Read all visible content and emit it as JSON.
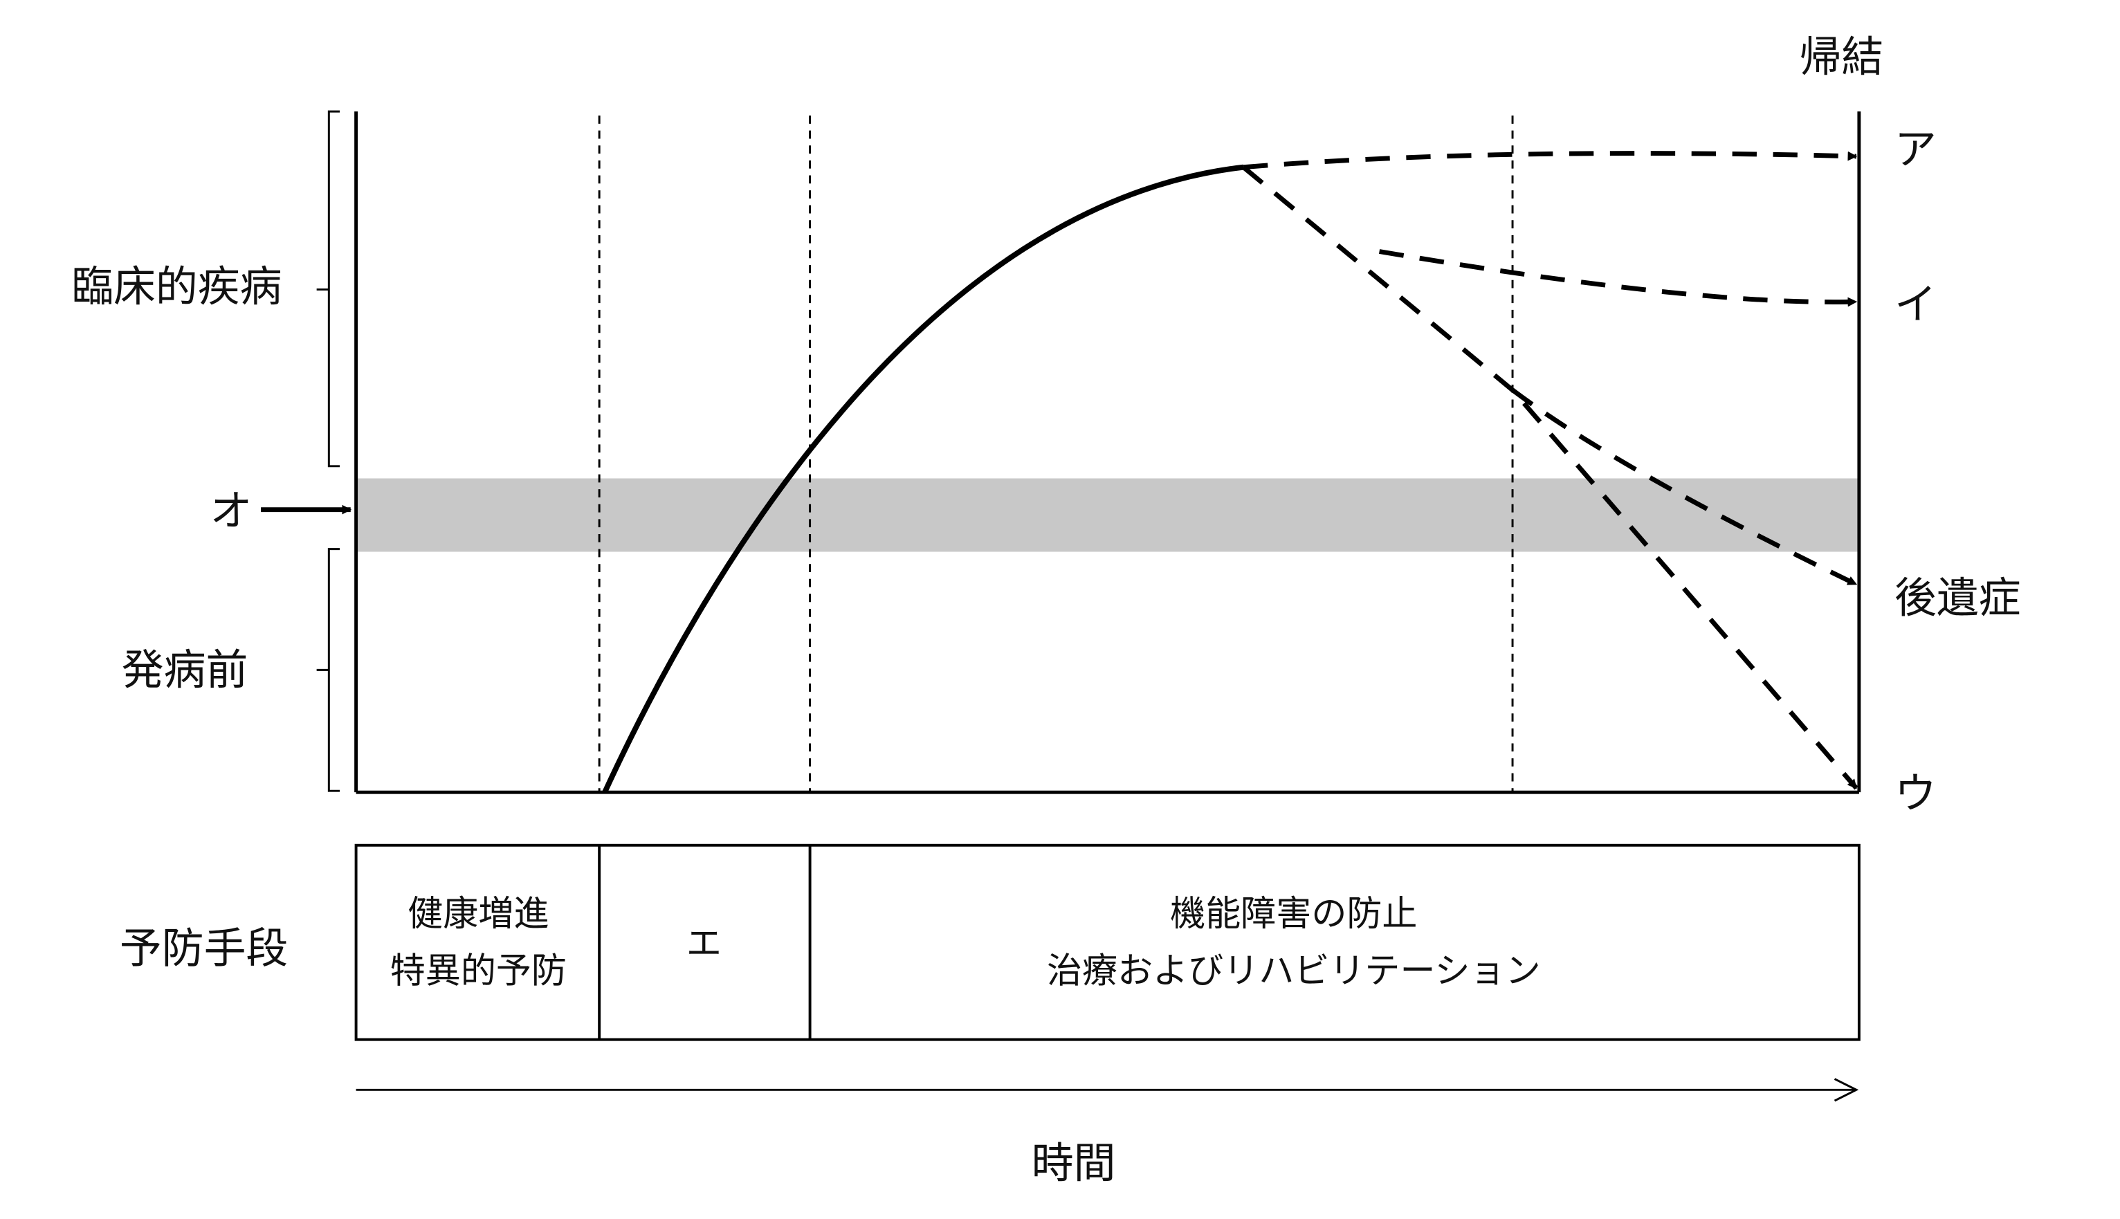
{
  "left_labels": {
    "clinical": "臨床的疾病",
    "threshold": "オ",
    "preclinical": "発病前"
  },
  "outcomes": {
    "title": "帰結",
    "items": [
      "ア",
      "イ",
      "後遺症",
      "ウ"
    ]
  },
  "prevention": {
    "label": "予防手段",
    "boxes": [
      {
        "lines": [
          "健康増進",
          "特異的予防"
        ]
      },
      {
        "lines": [
          "エ"
        ]
      },
      {
        "lines": [
          "機能障害の防止",
          "治療およびリハビリテーション"
        ]
      }
    ]
  },
  "x_axis": {
    "label": "時間"
  }
}
